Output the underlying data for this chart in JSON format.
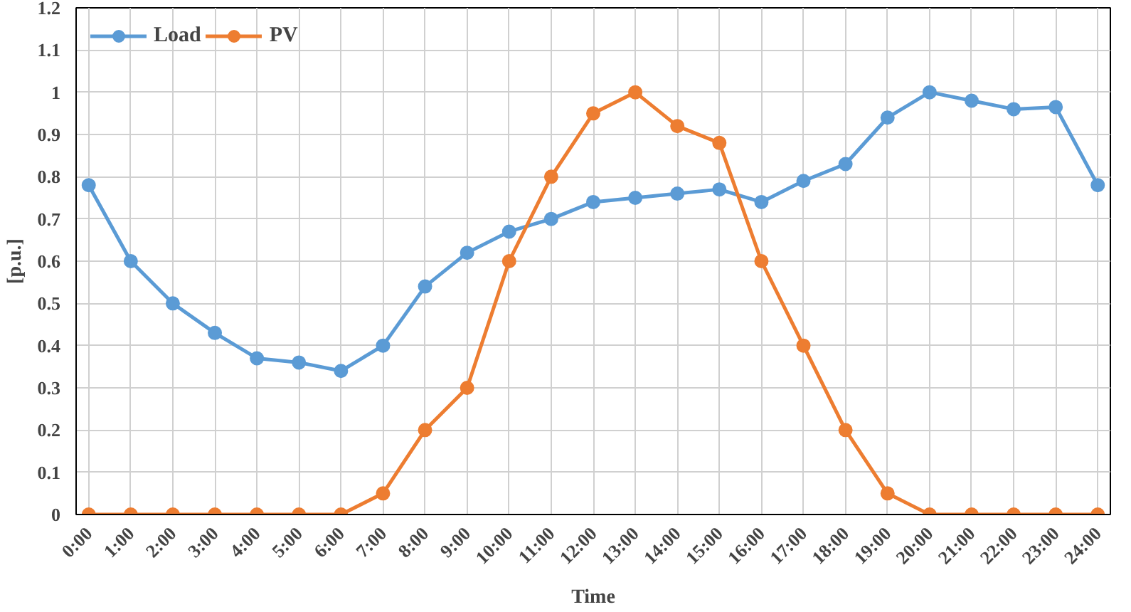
{
  "chart_data": {
    "type": "line",
    "xlabel": "Time",
    "ylabel": "[p.u.]",
    "categories": [
      "0:00",
      "1:00",
      "2:00",
      "3:00",
      "4:00",
      "5:00",
      "6:00",
      "7:00",
      "8:00",
      "9:00",
      "10:00",
      "11:00",
      "12:00",
      "13:00",
      "14:00",
      "15:00",
      "16:00",
      "17:00",
      "18:00",
      "19:00",
      "20:00",
      "21:00",
      "22:00",
      "23:00",
      "24:00"
    ],
    "series": [
      {
        "name": "Load",
        "color": "#5b9bd5",
        "values": [
          0.78,
          0.6,
          0.5,
          0.43,
          0.37,
          0.36,
          0.34,
          0.4,
          0.54,
          0.62,
          0.67,
          0.7,
          0.74,
          0.75,
          0.76,
          0.77,
          0.74,
          0.79,
          0.83,
          0.94,
          1.0,
          0.98,
          0.96,
          0.965,
          0.78
        ]
      },
      {
        "name": "PV",
        "color": "#ed7d31",
        "values": [
          0,
          0,
          0,
          0,
          0,
          0,
          0,
          0.05,
          0.2,
          0.3,
          0.6,
          0.8,
          0.95,
          1.0,
          0.92,
          0.88,
          0.6,
          0.4,
          0.2,
          0.05,
          0,
          0,
          0,
          0,
          0
        ]
      }
    ],
    "ylim": [
      0,
      1.2
    ],
    "yticks": [
      0,
      0.1,
      0.2,
      0.3,
      0.4,
      0.5,
      0.6,
      0.7,
      0.8,
      0.9,
      1,
      1.1,
      1.2
    ],
    "grid": true,
    "legend": "top left",
    "marker": "circle",
    "line_style": "solid"
  }
}
